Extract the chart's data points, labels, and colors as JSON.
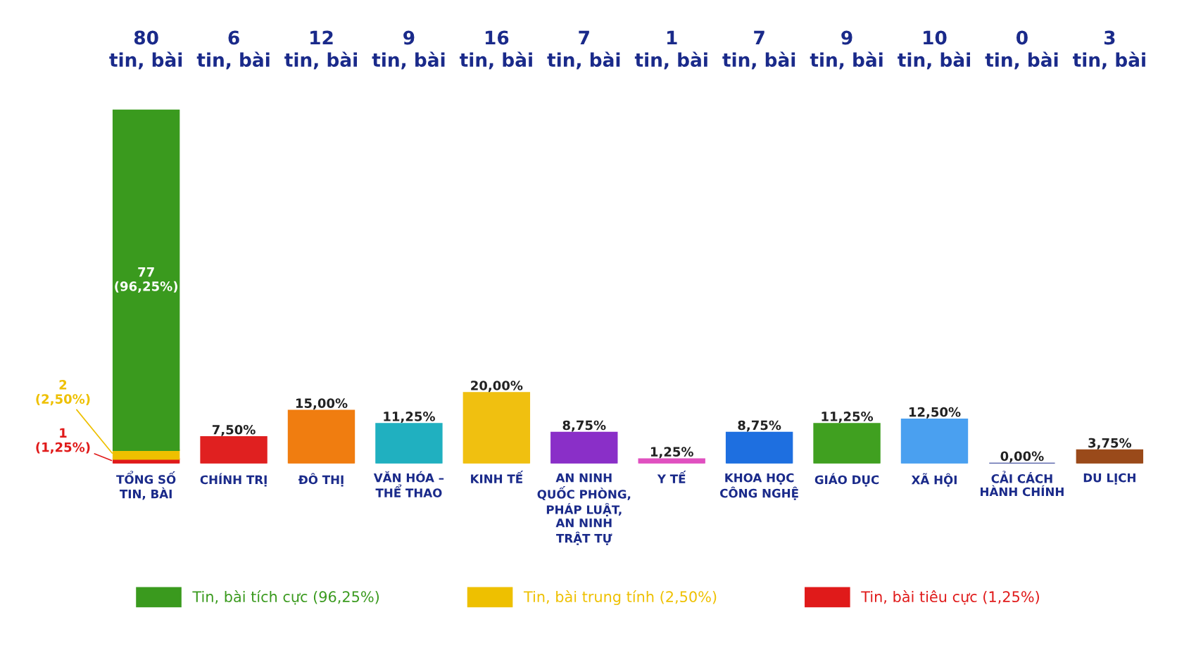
{
  "chart_data": {
    "type": "bar",
    "stacked": true,
    "legend": "bottom",
    "grid": false,
    "categories": [
      "TỔNG SỐ\nTIN, BÀI",
      "CHÍNH TRỊ",
      "ĐÔ THỊ",
      "VĂN HÓA –\nTHỂ THAO",
      "KINH TẾ",
      "AN NINH\nQUỐC PHÒNG,\nPHÁP LUẬT,\nAN NINH\nTRẬT TỰ",
      "Y TẾ",
      "KHOA HỌC\nCÔNG NGHỆ",
      "GIÁO DỤC",
      "XÃ HỘI",
      "CẢI CÁCH\nHÀNH CHÍNH",
      "DU LỊCH"
    ],
    "series": [
      {
        "name": "Tin, bài tiêu cực (1,25%)",
        "color": "#e01a1a",
        "values": [
          1.25,
          null,
          null,
          null,
          null,
          null,
          null,
          null,
          null,
          null,
          null,
          null
        ],
        "value_labels": [
          "1\n(1,25%)",
          null,
          null,
          null,
          null,
          null,
          null,
          null,
          null,
          null,
          null,
          null
        ]
      },
      {
        "name": "Tin, bài trung tính (2,50%)",
        "color": "#eec000",
        "values": [
          2.5,
          null,
          null,
          null,
          null,
          null,
          null,
          null,
          null,
          null,
          null,
          null
        ],
        "value_labels": [
          "2\n(2,50%)",
          null,
          null,
          null,
          null,
          null,
          null,
          null,
          null,
          null,
          null,
          null
        ]
      },
      {
        "name": "Tin, bài tích cực (96,25%)",
        "color": "#3a9a1e",
        "values": [
          96.25,
          null,
          null,
          null,
          null,
          null,
          null,
          null,
          null,
          null,
          null,
          null
        ],
        "value_labels": [
          "77\n(96,25%)",
          null,
          null,
          null,
          null,
          null,
          null,
          null,
          null,
          null,
          null,
          null
        ]
      },
      {
        "colors": [
          "#3a9a1e",
          "#e02020",
          "#f07d10",
          "#20b0c0",
          "#f0c010",
          "#8a2fc8",
          "#e050c0",
          "#1e6fe0",
          "#40a020",
          "#4aa0f0",
          "#1a2a8a",
          "#9a4a1a"
        ],
        "values": [
          null,
          7.5,
          15,
          11.25,
          20,
          8.75,
          1.25,
          8.75,
          11.25,
          12.5,
          0,
          3.75
        ],
        "value_labels": [
          null,
          "7,50%",
          "15,00%",
          "11,25%",
          "20,00%",
          "8,75%",
          "1,25%",
          "8,75%",
          "11,25%",
          "12,50%",
          "0,00%",
          "3,75%"
        ]
      }
    ],
    "annotations": [
      "80\ntin, bài",
      "6\ntin, bài",
      "12\ntin, bài",
      "9\ntin, bài",
      "16\ntin, bài",
      "7\ntin, bài",
      "1\ntin, bài",
      "7\ntin, bài",
      "9\ntin, bài",
      "10\ntin, bài",
      "0\ntin, bài",
      "3\ntin, bài"
    ]
  }
}
